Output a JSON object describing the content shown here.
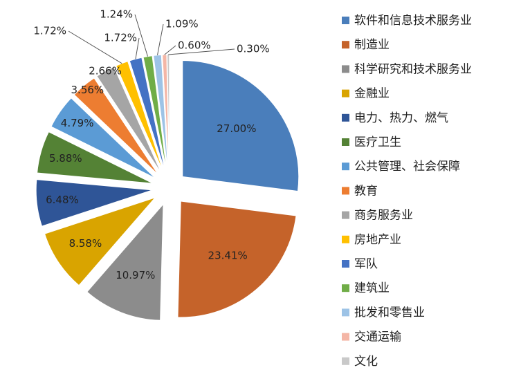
{
  "chart_data": {
    "type": "pie",
    "exploded": true,
    "legend_position": "right",
    "categories": [
      "软件和信息技术服务业",
      "制造业",
      "科学研究和技术服务业",
      "金融业",
      "电力、热力、燃气",
      "医疗卫生",
      "公共管理、社会保障",
      "教育",
      "商务服务业",
      "房地产业",
      "军队",
      "建筑业",
      "批发和零售业",
      "交通运输",
      "文化"
    ],
    "values": [
      27.0,
      23.41,
      10.97,
      8.58,
      6.48,
      5.88,
      4.79,
      3.56,
      2.66,
      1.72,
      1.72,
      1.24,
      1.09,
      0.6,
      0.3
    ],
    "labels": [
      "27.00%",
      "23.41%",
      "10.97%",
      "8.58%",
      "6.48%",
      "5.88%",
      "4.79%",
      "3.56%",
      "2.66%",
      "1.72%",
      "1.72%",
      "1.24%",
      "1.09%",
      "0.60%",
      "0.30%"
    ],
    "colors": [
      "#4A7EBB",
      "#C5632A",
      "#8C8C8C",
      "#D9A400",
      "#2F5597",
      "#548235",
      "#5B9BD5",
      "#ED7D31",
      "#A5A5A5",
      "#FFC000",
      "#4472C4",
      "#70AD47",
      "#9DC3E6",
      "#F4B6A6",
      "#C9C9C9"
    ]
  }
}
